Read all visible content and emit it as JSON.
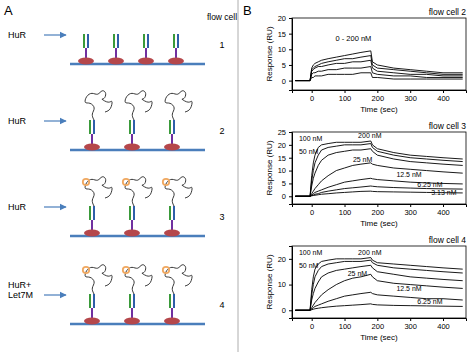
{
  "panels": [
    "A",
    "B"
  ],
  "diagram": {
    "header": "flow cell",
    "rows": [
      {
        "label": [
          "HuR"
        ],
        "flow_cell": 1
      },
      {
        "label": [
          "HuR"
        ],
        "flow_cell": 2
      },
      {
        "label": [
          "HuR"
        ],
        "flow_cell": 3
      },
      {
        "label": [
          "HuR+",
          "Let7M"
        ],
        "flow_cell": 4
      }
    ]
  },
  "chart_data": [
    {
      "type": "line",
      "title": "flow cell 2",
      "x_label": "Time (sec)",
      "y_label": "Response (RU)",
      "x": [
        -50,
        -5,
        0,
        5,
        10,
        20,
        30,
        50,
        75,
        100,
        125,
        150,
        180,
        185,
        200,
        250,
        300,
        350,
        400,
        460
      ],
      "xlim": [
        -60,
        470
      ],
      "xticks": [
        0,
        100,
        200,
        300,
        400
      ],
      "ylim": [
        -3,
        20
      ],
      "yticks": [
        0,
        5,
        10,
        15,
        20
      ],
      "annotations": [
        "0 - 200 nM"
      ],
      "series": [
        {
          "color": "#000000",
          "values": [
            0,
            0,
            4,
            5,
            5.5,
            6,
            6.5,
            7,
            7.5,
            8,
            8.5,
            9,
            9.5,
            6,
            5,
            4,
            3.5,
            3,
            2.5,
            2.5
          ]
        },
        {
          "color": "#000000",
          "values": [
            0,
            0,
            3.5,
            4,
            4.5,
            5,
            5.5,
            6,
            6.5,
            7,
            7,
            7.5,
            8,
            5,
            4,
            3.5,
            3,
            2.5,
            2,
            2
          ]
        },
        {
          "color": "#000000",
          "values": [
            0,
            0,
            3,
            3.5,
            4,
            4.5,
            4.5,
            5,
            5.5,
            5.5,
            6,
            6,
            6.5,
            4,
            3,
            2.5,
            2,
            2,
            1.5,
            1.5
          ]
        },
        {
          "color": "#000000",
          "values": [
            0,
            0,
            2,
            2.5,
            2.5,
            3,
            3,
            3.5,
            3.5,
            4,
            4,
            4,
            4.5,
            2.5,
            2,
            1.5,
            1.5,
            1,
            1,
            1
          ]
        },
        {
          "color": "#000000",
          "values": [
            0,
            0,
            1,
            1,
            1.5,
            1.5,
            1.5,
            2,
            2,
            2,
            2,
            2.5,
            2.5,
            1,
            1,
            0.5,
            0.5,
            0.5,
            0.5,
            0.5
          ]
        }
      ]
    },
    {
      "type": "line",
      "title": "flow cell 3",
      "x_label": "Time (sec)",
      "y_label": "Response (RU)",
      "x": [
        -50,
        -5,
        0,
        5,
        10,
        20,
        30,
        50,
        75,
        100,
        125,
        150,
        180,
        185,
        200,
        250,
        300,
        350,
        400,
        460
      ],
      "xlim": [
        -60,
        470
      ],
      "xticks": [
        0,
        100,
        200,
        300,
        400
      ],
      "ylim": [
        -3,
        25
      ],
      "yticks": [
        0,
        5,
        10,
        15,
        20,
        25
      ],
      "series": [
        {
          "name": "200 nM",
          "color": "#000000",
          "values": [
            0,
            0,
            8,
            13,
            16,
            19,
            20,
            20.5,
            21,
            21,
            21,
            21,
            21.5,
            20,
            18.5,
            17,
            16,
            15.5,
            15,
            14.5
          ]
        },
        {
          "name": "100 nM",
          "color": "#000000",
          "values": [
            0,
            0,
            6,
            10,
            13,
            16,
            18,
            19,
            19.5,
            20,
            20,
            20,
            20.5,
            19,
            17.5,
            16,
            15,
            14.5,
            14,
            13.5
          ]
        },
        {
          "name": "50 nM",
          "color": "#000000",
          "values": [
            0,
            0,
            4,
            7,
            9,
            12,
            14,
            16,
            17,
            17.5,
            18,
            18,
            18.5,
            17.5,
            16,
            14.5,
            13.5,
            13,
            12.5,
            12
          ]
        },
        {
          "name": "25 nM",
          "color": "#000000",
          "values": [
            0,
            0,
            1,
            2,
            3,
            4.5,
            6,
            8,
            10,
            11,
            12,
            12.5,
            13,
            12.5,
            12,
            11,
            10.5,
            10,
            9.5,
            9
          ]
        },
        {
          "name": "12.5 nM",
          "color": "#000000",
          "values": [
            0,
            0,
            0.5,
            1,
            1.5,
            2,
            2.5,
            3.5,
            4.5,
            5.5,
            6,
            6.5,
            7,
            6.8,
            6.5,
            6,
            5.5,
            5.2,
            5,
            4.8
          ]
        },
        {
          "name": "6.25 nM",
          "color": "#000000",
          "values": [
            0,
            0,
            0.3,
            0.5,
            0.8,
            1,
            1.5,
            2,
            2.5,
            3,
            3.3,
            3.6,
            4,
            3.9,
            3.7,
            3.4,
            3.2,
            3,
            2.9,
            2.8
          ]
        },
        {
          "name": "3.13 nM",
          "color": "#000000",
          "values": [
            0,
            0,
            0.2,
            0.3,
            0.4,
            0.6,
            0.8,
            1,
            1.3,
            1.5,
            1.7,
            1.9,
            2,
            1.9,
            1.8,
            1.7,
            1.6,
            1.5,
            1.4,
            1.3
          ]
        }
      ]
    },
    {
      "type": "line",
      "title": "flow cell 4",
      "x_label": "Time (sec)",
      "y_label": "Response (RU)",
      "x": [
        -50,
        -5,
        0,
        5,
        10,
        20,
        30,
        50,
        75,
        100,
        125,
        150,
        180,
        185,
        200,
        250,
        300,
        350,
        400,
        460
      ],
      "xlim": [
        -60,
        470
      ],
      "xticks": [
        0,
        100,
        200,
        300,
        400
      ],
      "ylim": [
        -3,
        25
      ],
      "yticks": [
        0,
        10,
        20
      ],
      "series": [
        {
          "name": "200 nM",
          "color": "#000000",
          "values": [
            0,
            0,
            8,
            13,
            16,
            18,
            19,
            19.5,
            20,
            20,
            20,
            20,
            20.5,
            19.5,
            18.5,
            18,
            17.5,
            17,
            16.5,
            16
          ]
        },
        {
          "name": "100 nM",
          "color": "#000000",
          "values": [
            0,
            0,
            6,
            10,
            13,
            15.5,
            17,
            18,
            18.5,
            19,
            19,
            19,
            19.5,
            18.5,
            17.5,
            16.5,
            16,
            15.5,
            15,
            14.5
          ]
        },
        {
          "name": "50 nM",
          "color": "#000000",
          "values": [
            0,
            0,
            4,
            6.5,
            8.5,
            11,
            13,
            14.5,
            15.5,
            16,
            16.5,
            17,
            17.5,
            16.5,
            15,
            14,
            13,
            12.5,
            12,
            11.5
          ]
        },
        {
          "name": "25 nM",
          "color": "#000000",
          "values": [
            0,
            0,
            1,
            2,
            3,
            4.5,
            6,
            8,
            10,
            11.5,
            12.5,
            13,
            14,
            13,
            11.5,
            10.5,
            10,
            9.5,
            9,
            8.5
          ]
        },
        {
          "name": "12.5 nM",
          "color": "#000000",
          "values": [
            0,
            0,
            0.5,
            1,
            1.5,
            2,
            2.5,
            3.5,
            4.5,
            5.5,
            6,
            6.5,
            7,
            6.5,
            6,
            5.5,
            5,
            4.5,
            4.5,
            4
          ]
        },
        {
          "name": "6.25 nM",
          "color": "#000000",
          "values": [
            0,
            0,
            0.2,
            0.4,
            0.6,
            0.8,
            1,
            1.3,
            1.6,
            1.8,
            2,
            2.2,
            2.5,
            2.3,
            2.1,
            1.9,
            1.8,
            1.7,
            1.6,
            1.5
          ]
        }
      ]
    }
  ]
}
